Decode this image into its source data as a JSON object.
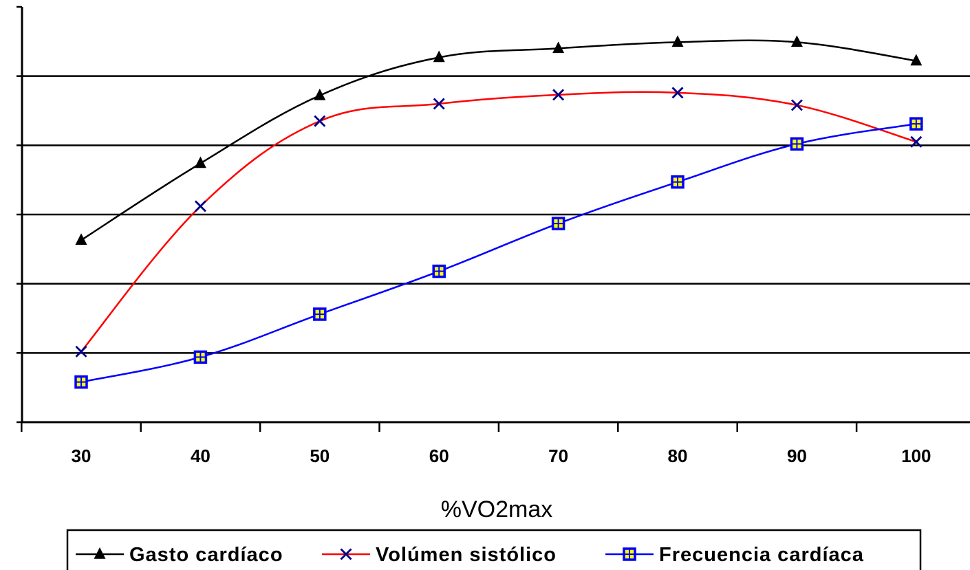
{
  "chart_data": {
    "type": "line",
    "title": "",
    "xlabel": "%VO2max",
    "ylabel": "",
    "categories": [
      "30",
      "40",
      "50",
      "60",
      "70",
      "80",
      "90",
      "100"
    ],
    "ylim": [
      0,
      6
    ],
    "y_ticks": [
      0,
      1,
      2,
      3,
      4,
      5,
      6
    ],
    "y_tick_labels_visible": false,
    "grid": "horizontal",
    "legend_placement": "bottom",
    "series": [
      {
        "name": "Gasto cardíaco",
        "color": "#000000",
        "marker": "triangle",
        "values": [
          2.63,
          3.74,
          4.72,
          5.27,
          5.4,
          5.49,
          5.49,
          5.22
        ]
      },
      {
        "name": "Volúmen sistólico",
        "color": "#ff0000",
        "marker": "x",
        "values": [
          1.02,
          3.12,
          4.35,
          4.6,
          4.73,
          4.76,
          4.58,
          4.05
        ]
      },
      {
        "name": "Frecuencia cardíaca",
        "color": "#0000ff",
        "marker": "square",
        "marker_fill": "#ffff00",
        "values": [
          0.58,
          0.94,
          1.56,
          2.18,
          2.87,
          3.47,
          4.02,
          4.31
        ]
      }
    ]
  }
}
